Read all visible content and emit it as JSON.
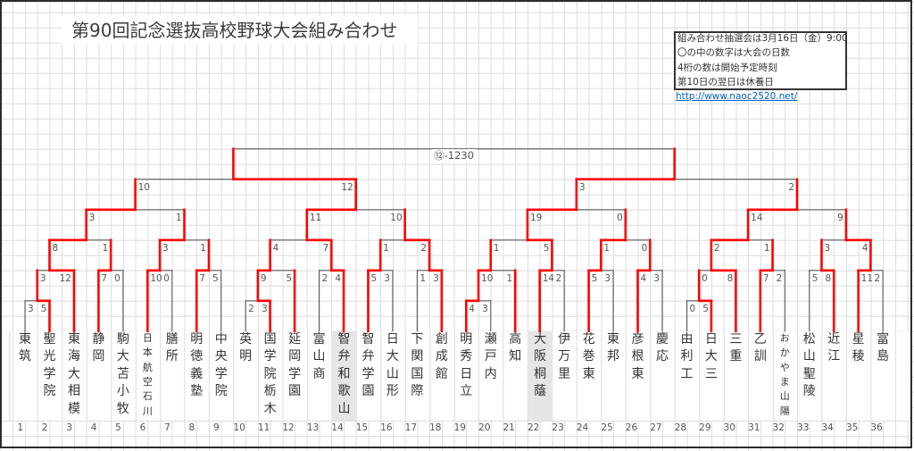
{
  "title": "第90回記念選抜高校野球大会組み合わせ",
  "info_box": {
    "lines": [
      "組み合わせ抽選会は3月16日（金）9:00~",
      "〇の中の数字は大会の日数",
      "4桁の数は開始予定時刻",
      "第10日の翌日は休養日"
    ],
    "link": "http://www.naoc2520.net/"
  },
  "colors": {
    "winner_line": "#ff0000",
    "bracket_line": "#5a5a5a",
    "link": "#0563c1",
    "highlight": "#e6e6e6"
  },
  "final": {
    "label": "⑫-1230",
    "left_k": 18,
    "right_k": 54
  },
  "teams": [
    {
      "no": 1,
      "name": "東筑",
      "prelim": true,
      "winner_path": false
    },
    {
      "no": 2,
      "name": "聖光学院",
      "prelim": true,
      "winner_path": true
    },
    {
      "no": 3,
      "name": "東海大相模",
      "winner_path": true
    },
    {
      "no": 4,
      "name": "静岡",
      "winner_path": true
    },
    {
      "no": 5,
      "name": "駒大苫小牧",
      "winner_path": false
    },
    {
      "no": 6,
      "name": "日本航空石川",
      "small": true,
      "winner_path": true
    },
    {
      "no": 7,
      "name": "膳所",
      "winner_path": false
    },
    {
      "no": 8,
      "name": "明徳義塾",
      "winner_path": true
    },
    {
      "no": 9,
      "name": "中央学院",
      "winner_path": false
    },
    {
      "no": 10,
      "name": "英明",
      "prelim": true,
      "winner_path": false
    },
    {
      "no": 11,
      "name": "国学院栃木",
      "prelim": true,
      "winner_path": true
    },
    {
      "no": 12,
      "name": "延岡学園",
      "winner_path": true
    },
    {
      "no": 13,
      "name": "富山商",
      "winner_path": false
    },
    {
      "no": 14,
      "name": "智弁和歌山",
      "highlight": true,
      "winner_path": true
    },
    {
      "no": 15,
      "name": "智弁学園",
      "winner_path": true
    },
    {
      "no": 16,
      "name": "日大山形",
      "winner_path": false
    },
    {
      "no": 17,
      "name": "下関国際",
      "winner_path": false
    },
    {
      "no": 18,
      "name": "創成館",
      "winner_path": true
    },
    {
      "no": 19,
      "name": "明秀日立",
      "prelim": true,
      "winner_path": true
    },
    {
      "no": 20,
      "name": "瀬戸内",
      "prelim": true,
      "winner_path": false
    },
    {
      "no": 21,
      "name": "高知",
      "winner_path": true
    },
    {
      "no": 22,
      "name": "大阪桐蔭",
      "highlight": true,
      "winner_path": true
    },
    {
      "no": 23,
      "name": "伊万里",
      "winner_path": false
    },
    {
      "no": 24,
      "name": "花巻東",
      "winner_path": true
    },
    {
      "no": 25,
      "name": "東邦",
      "winner_path": false
    },
    {
      "no": 26,
      "name": "彦根東",
      "winner_path": true
    },
    {
      "no": 27,
      "name": "慶応",
      "winner_path": false
    },
    {
      "no": 28,
      "name": "由利工",
      "prelim": true,
      "winner_path": false
    },
    {
      "no": 29,
      "name": "日大三",
      "prelim": true,
      "winner_path": true
    },
    {
      "no": 30,
      "name": "三重",
      "winner_path": true
    },
    {
      "no": 31,
      "name": "乙訓",
      "winner_path": true
    },
    {
      "no": 32,
      "name": "おかやま山陽",
      "small": true,
      "winner_path": false
    },
    {
      "no": 33,
      "name": "松山聖陵",
      "winner_path": false
    },
    {
      "no": 34,
      "name": "近江",
      "winner_path": true
    },
    {
      "no": 35,
      "name": "星稜",
      "winner_path": true
    },
    {
      "no": 36,
      "name": "富島",
      "winner_path": false
    }
  ],
  "matches": [
    {
      "level": 6,
      "left_k": 1,
      "right_k": 3,
      "up_k": 2,
      "scores": [
        "3",
        "5"
      ],
      "winner": "right"
    },
    {
      "level": 5,
      "left_k": 2,
      "right_k": 5,
      "up_k": 3,
      "scores": [
        "3",
        "12"
      ],
      "winner": "right"
    },
    {
      "level": 5,
      "left_k": 7,
      "right_k": 9,
      "up_k": 8,
      "scores": [
        "7",
        "0"
      ],
      "winner": "left"
    },
    {
      "level": 5,
      "left_k": 11,
      "right_k": 13,
      "up_k": 12,
      "scores": [
        "10",
        "0"
      ],
      "winner": "left"
    },
    {
      "level": 5,
      "left_k": 15,
      "right_k": 17,
      "up_k": 16,
      "scores": [
        "7",
        "5"
      ],
      "winner": "left"
    },
    {
      "level": 4,
      "left_k": 3,
      "right_k": 8,
      "up_k": 6,
      "scores": [
        "8",
        "1"
      ],
      "winner": "left"
    },
    {
      "level": 4,
      "left_k": 12,
      "right_k": 16,
      "up_k": 14,
      "scores": [
        "3",
        "1"
      ],
      "winner": "left"
    },
    {
      "level": 3,
      "left_k": 6,
      "right_k": 14,
      "up_k": 10,
      "scores": [
        "3",
        "1"
      ],
      "winner": "left"
    },
    {
      "level": 6,
      "left_k": 19,
      "right_k": 21,
      "up_k": 20,
      "scores": [
        "2",
        "3"
      ],
      "winner": "right"
    },
    {
      "level": 5,
      "left_k": 20,
      "right_k": 23,
      "up_k": 21,
      "scores": [
        "9",
        "5"
      ],
      "winner": "left"
    },
    {
      "level": 5,
      "left_k": 25,
      "right_k": 27,
      "up_k": 26,
      "scores": [
        "2",
        "4"
      ],
      "winner": "right"
    },
    {
      "level": 5,
      "left_k": 29,
      "right_k": 31,
      "up_k": 30,
      "scores": [
        "5",
        "3"
      ],
      "winner": "left"
    },
    {
      "level": 5,
      "left_k": 33,
      "right_k": 35,
      "up_k": 34,
      "scores": [
        "1",
        "3"
      ],
      "winner": "right"
    },
    {
      "level": 4,
      "left_k": 21,
      "right_k": 26,
      "up_k": 24,
      "scores": [
        "4",
        "7"
      ],
      "winner": "right"
    },
    {
      "level": 4,
      "left_k": 30,
      "right_k": 34,
      "up_k": 32,
      "scores": [
        "1",
        "2"
      ],
      "winner": "right"
    },
    {
      "level": 3,
      "left_k": 24,
      "right_k": 32,
      "up_k": 28,
      "scores": [
        "11",
        "10"
      ],
      "winner": "left"
    },
    {
      "level": 6,
      "left_k": 37,
      "right_k": 39,
      "up_k": 38,
      "scores": [
        "4",
        "3"
      ],
      "winner": "left"
    },
    {
      "level": 5,
      "left_k": 38,
      "right_k": 41,
      "up_k": 39,
      "scores": [
        "10",
        "1"
      ],
      "winner": "left"
    },
    {
      "level": 5,
      "left_k": 43,
      "right_k": 45,
      "up_k": 44,
      "scores": [
        "14",
        "2"
      ],
      "winner": "left"
    },
    {
      "level": 5,
      "left_k": 47,
      "right_k": 49,
      "up_k": 48,
      "scores": [
        "5",
        "3"
      ],
      "winner": "left"
    },
    {
      "level": 5,
      "left_k": 51,
      "right_k": 53,
      "up_k": 52,
      "scores": [
        "4",
        "3"
      ],
      "winner": "left"
    },
    {
      "level": 4,
      "left_k": 39,
      "right_k": 44,
      "up_k": 42,
      "scores": [
        "1",
        "5"
      ],
      "winner": "right"
    },
    {
      "level": 4,
      "left_k": 48,
      "right_k": 52,
      "up_k": 50,
      "scores": [
        "1",
        "0"
      ],
      "winner": "left"
    },
    {
      "level": 3,
      "left_k": 42,
      "right_k": 50,
      "up_k": 46,
      "scores": [
        "19",
        "0"
      ],
      "winner": "left"
    },
    {
      "level": 6,
      "left_k": 55,
      "right_k": 57,
      "up_k": 56,
      "scores": [
        "0",
        "5"
      ],
      "winner": "right"
    },
    {
      "level": 5,
      "left_k": 56,
      "right_k": 59,
      "up_k": 57,
      "scores": [
        "0",
        "8"
      ],
      "winner": "right"
    },
    {
      "level": 5,
      "left_k": 61,
      "right_k": 63,
      "up_k": 62,
      "scores": [
        "7",
        "2"
      ],
      "winner": "left"
    },
    {
      "level": 5,
      "left_k": 65,
      "right_k": 67,
      "up_k": 66,
      "scores": [
        "5",
        "8"
      ],
      "winner": "right"
    },
    {
      "level": 5,
      "left_k": 69,
      "right_k": 71,
      "up_k": 70,
      "scores": [
        "11",
        "2"
      ],
      "winner": "left"
    },
    {
      "level": 4,
      "left_k": 57,
      "right_k": 62,
      "up_k": 60,
      "scores": [
        "2",
        "1"
      ],
      "winner": "left"
    },
    {
      "level": 4,
      "left_k": 66,
      "right_k": 70,
      "up_k": 68,
      "scores": [
        "3",
        "4"
      ],
      "winner": "right"
    },
    {
      "level": 3,
      "left_k": 60,
      "right_k": 68,
      "up_k": 64,
      "scores": [
        "14",
        "9"
      ],
      "winner": "left"
    },
    {
      "level": 2,
      "left_k": 10,
      "right_k": 28,
      "up_k": 18,
      "scores": [
        "10",
        "12"
      ],
      "winner": "right"
    },
    {
      "level": 2,
      "left_k": 46,
      "right_k": 64,
      "up_k": 54,
      "scores": [
        "3",
        "2"
      ],
      "winner": "left"
    }
  ]
}
